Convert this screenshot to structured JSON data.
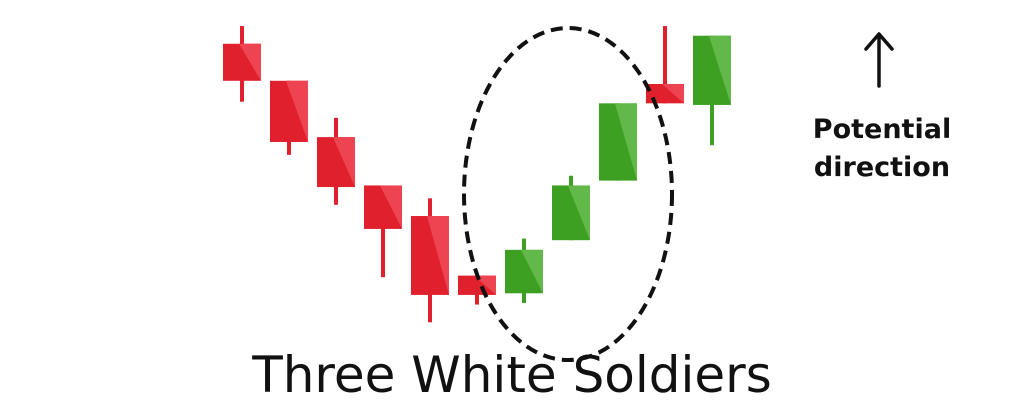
{
  "chart_data": {
    "type": "candlestick",
    "title": "Three White Soldiers",
    "annotation": {
      "lines": [
        "Potential",
        "direction"
      ],
      "arrow": "up-arrow"
    },
    "highlight": {
      "shape": "dashed-ellipse",
      "covers": "candles 6-9"
    },
    "colors": {
      "bearish": "#e0202c",
      "bearish_light": "#ee4350",
      "bullish": "#3da023",
      "bullish_light": "#63b84a",
      "highlight": "#111111",
      "text": "#111111"
    },
    "ylim": [
      0,
      100
    ],
    "candles": [
      {
        "open": 92.0,
        "close": 80.5,
        "high": 97.5,
        "low": 74.0,
        "direction": "bearish"
      },
      {
        "open": 80.5,
        "close": 61.5,
        "high": 80.5,
        "low": 57.5,
        "direction": "bearish"
      },
      {
        "open": 63.0,
        "close": 47.5,
        "high": 69.0,
        "low": 42.0,
        "direction": "bearish"
      },
      {
        "open": 48.0,
        "close": 34.5,
        "high": 48.0,
        "low": 19.5,
        "direction": "bearish"
      },
      {
        "open": 38.5,
        "close": 14.0,
        "high": 44.0,
        "low": 5.5,
        "direction": "bearish"
      },
      {
        "open": 20.0,
        "close": 14.0,
        "high": 20.0,
        "low": 11.0,
        "direction": "bearish"
      },
      {
        "open": 14.5,
        "close": 28.0,
        "high": 31.5,
        "low": 11.5,
        "direction": "bullish"
      },
      {
        "open": 31.0,
        "close": 48.0,
        "high": 51.0,
        "low": 31.0,
        "direction": "bullish"
      },
      {
        "open": 49.5,
        "close": 73.5,
        "high": 73.5,
        "low": 49.5,
        "direction": "bullish"
      },
      {
        "open": 79.5,
        "close": 73.5,
        "high": 97.5,
        "low": 73.5,
        "direction": "bearish"
      },
      {
        "open": 73.0,
        "close": 94.5,
        "high": 94.5,
        "low": 60.5,
        "direction": "bullish"
      }
    ]
  }
}
